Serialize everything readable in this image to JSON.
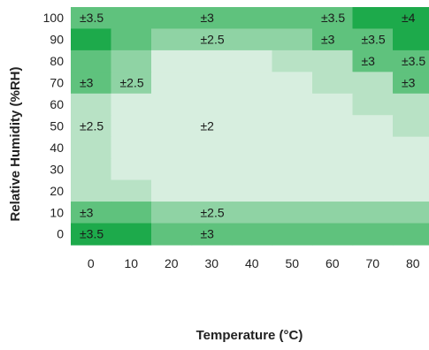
{
  "chart_data": {
    "type": "heatmap",
    "title": "",
    "xlabel": "Temperature (°C)",
    "ylabel": "Relative Humidity (%RH)",
    "x_ticks": [
      "0",
      "10",
      "20",
      "30",
      "40",
      "50",
      "60",
      "70",
      "80"
    ],
    "y_ticks": [
      "100",
      "90",
      "80",
      "70",
      "60",
      "50",
      "40",
      "30",
      "20",
      "10",
      "0"
    ],
    "grid": false,
    "legend": "none",
    "palette": {
      "level1": "#d7eedf",
      "level2": "#b8e2c5",
      "level3": "#8fd3a4",
      "level4": "#5fc27d",
      "level5": "#1daa4b"
    },
    "accuracy_levels": [
      [
        "L4",
        "L4",
        "L4",
        "L4",
        "L4",
        "L4",
        "L4",
        "L5",
        "L5"
      ],
      [
        "L5",
        "L4",
        "L3",
        "L3",
        "L3",
        "L3",
        "L4",
        "L4",
        "L5"
      ],
      [
        "L4",
        "L3",
        "L1",
        "L1",
        "L1",
        "L2",
        "L2",
        "L4",
        "L4"
      ],
      [
        "L4",
        "L3",
        "L1",
        "L1",
        "L1",
        "L1",
        "L2",
        "L2",
        "L4"
      ],
      [
        "L2",
        "L1",
        "L1",
        "L1",
        "L1",
        "L1",
        "L1",
        "L2",
        "L2"
      ],
      [
        "L2",
        "L1",
        "L1",
        "L1",
        "L1",
        "L1",
        "L1",
        "L1",
        "L2"
      ],
      [
        "L2",
        "L1",
        "L1",
        "L1",
        "L1",
        "L1",
        "L1",
        "L1",
        "L1"
      ],
      [
        "L2",
        "L1",
        "L1",
        "L1",
        "L1",
        "L1",
        "L1",
        "L1",
        "L1"
      ],
      [
        "L2",
        "L2",
        "L1",
        "L1",
        "L1",
        "L1",
        "L1",
        "L1",
        "L1"
      ],
      [
        "L4",
        "L4",
        "L3",
        "L3",
        "L3",
        "L3",
        "L3",
        "L3",
        "L3"
      ],
      [
        "L5",
        "L5",
        "L4",
        "L4",
        "L4",
        "L4",
        "L4",
        "L4",
        "L4"
      ]
    ],
    "labels": [
      {
        "row": 0,
        "col": 0,
        "text": "±3.5"
      },
      {
        "row": 0,
        "col": 3,
        "text": "±3"
      },
      {
        "row": 0,
        "col": 6,
        "text": "±3.5"
      },
      {
        "row": 0,
        "col": 8,
        "text": "±4"
      },
      {
        "row": 1,
        "col": 3,
        "text": "±2.5"
      },
      {
        "row": 1,
        "col": 6,
        "text": "±3"
      },
      {
        "row": 1,
        "col": 7,
        "text": "±3.5"
      },
      {
        "row": 2,
        "col": 7,
        "text": "±3"
      },
      {
        "row": 2,
        "col": 8,
        "text": "±3.5"
      },
      {
        "row": 3,
        "col": 0,
        "text": "±3"
      },
      {
        "row": 3,
        "col": 1,
        "text": "±2.5"
      },
      {
        "row": 3,
        "col": 8,
        "text": "±3"
      },
      {
        "row": 5,
        "col": 0,
        "text": "±2.5"
      },
      {
        "row": 5,
        "col": 3,
        "text": "±2"
      },
      {
        "row": 9,
        "col": 0,
        "text": "±3"
      },
      {
        "row": 9,
        "col": 3,
        "text": "±2.5"
      },
      {
        "row": 10,
        "col": 0,
        "text": "±3.5"
      },
      {
        "row": 10,
        "col": 3,
        "text": "±3"
      }
    ]
  }
}
